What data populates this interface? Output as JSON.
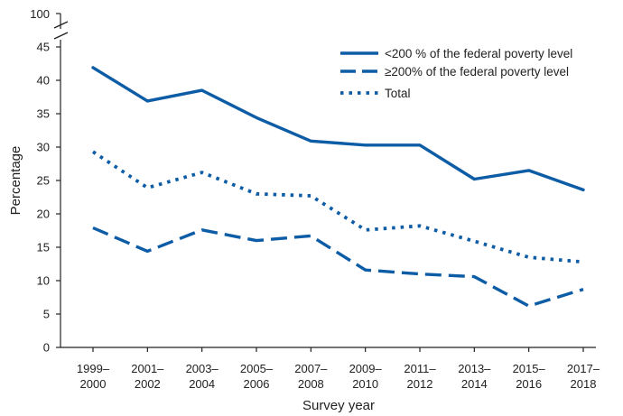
{
  "chart_data": {
    "type": "line",
    "title": "",
    "xlabel": "Survey year",
    "ylabel": "Percentage",
    "ylim": [
      0,
      45
    ],
    "y_break_label": "100",
    "yticks": [
      0,
      5,
      10,
      15,
      20,
      25,
      30,
      35,
      40,
      45
    ],
    "categories": [
      [
        "1999–",
        "2000"
      ],
      [
        "2001–",
        "2002"
      ],
      [
        "2003–",
        "2004"
      ],
      [
        "2005–",
        "2006"
      ],
      [
        "2007–",
        "2008"
      ],
      [
        "2009–",
        "2010"
      ],
      [
        "2011–",
        "2012"
      ],
      [
        "2013–",
        "2014"
      ],
      [
        "2015–",
        "2016"
      ],
      [
        "2017–",
        "2018"
      ]
    ],
    "series": [
      {
        "name": "<200 % of the federal poverty level",
        "style": "solid",
        "values": [
          41.9,
          36.9,
          38.5,
          34.4,
          30.9,
          30.3,
          30.3,
          25.2,
          26.5,
          23.6
        ]
      },
      {
        "name": "≥200% of the federal poverty level",
        "style": "dashed",
        "values": [
          17.9,
          14.4,
          17.6,
          16.0,
          16.7,
          11.6,
          11.0,
          10.6,
          6.2,
          8.7
        ]
      },
      {
        "name": "Total",
        "style": "dotted",
        "values": [
          29.3,
          23.9,
          26.2,
          23.0,
          22.7,
          17.6,
          18.2,
          15.9,
          13.5,
          12.8
        ]
      }
    ],
    "legend_position": "top-right",
    "line_color": "#0d5ca6"
  }
}
